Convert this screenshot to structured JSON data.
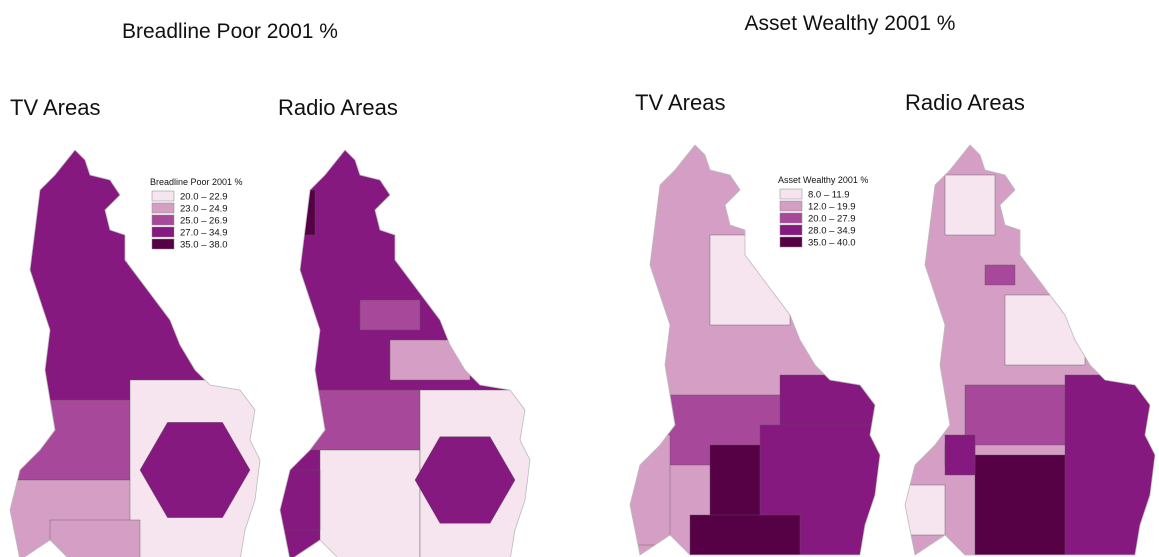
{
  "panels": [
    {
      "title": "Breadline Poor 2001 %",
      "maps": [
        {
          "label": "TV Areas"
        },
        {
          "label": "Radio Areas"
        }
      ],
      "legend": {
        "title": "Breadline Poor 2001 %",
        "classes": [
          {
            "label": "20.0 – 22.9",
            "color": "#f6e4ee"
          },
          {
            "label": "23.0 – 24.9",
            "color": "#d59ec4"
          },
          {
            "label": "25.0 – 26.9",
            "color": "#a7489a"
          },
          {
            "label": "27.0 – 34.9",
            "color": "#86197f"
          },
          {
            "label": "35.0 – 38.0",
            "color": "#560045"
          }
        ]
      }
    },
    {
      "title": "Asset Wealthy 2001 %",
      "maps": [
        {
          "label": "TV Areas"
        },
        {
          "label": "Radio Areas"
        }
      ],
      "legend": {
        "title": "Asset Wealthy 2001 %",
        "classes": [
          {
            "label": "8.0 – 11.9",
            "color": "#f6e4ee"
          },
          {
            "label": "12.0 – 19.9",
            "color": "#d59ec4"
          },
          {
            "label": "20.0 – 27.9",
            "color": "#a7489a"
          },
          {
            "label": "28.0 – 34.9",
            "color": "#86197f"
          },
          {
            "label": "35.0 – 40.0",
            "color": "#560045"
          }
        ]
      }
    }
  ]
}
